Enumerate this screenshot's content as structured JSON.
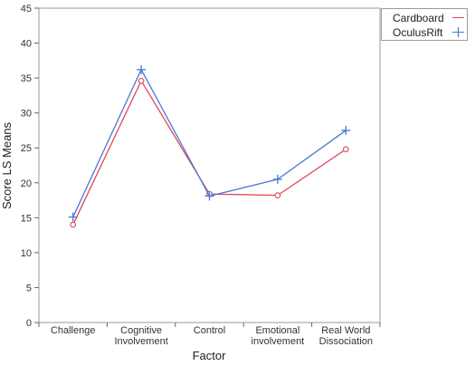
{
  "chart_data": {
    "type": "line",
    "xlabel": "Factor",
    "ylabel": "Score LS Means",
    "ylim": [
      0,
      45
    ],
    "yticks": [
      0,
      5,
      10,
      15,
      20,
      25,
      30,
      35,
      40,
      45
    ],
    "categories": [
      [
        "Challenge"
      ],
      [
        "Cognitive",
        "Involvement"
      ],
      [
        "Control"
      ],
      [
        "Emotional",
        "involvement"
      ],
      [
        "Real World",
        "Dissociation"
      ]
    ],
    "series": [
      {
        "name": "Cardboard",
        "color": "#e0475b",
        "marker": "circle",
        "values": [
          14.0,
          34.6,
          18.4,
          18.2,
          24.8
        ]
      },
      {
        "name": "OculusRift",
        "color": "#4a78d6",
        "marker": "plus",
        "values": [
          15.1,
          36.2,
          18.1,
          20.5,
          27.5
        ]
      }
    ],
    "legend_position": "top-right",
    "grid": false
  }
}
